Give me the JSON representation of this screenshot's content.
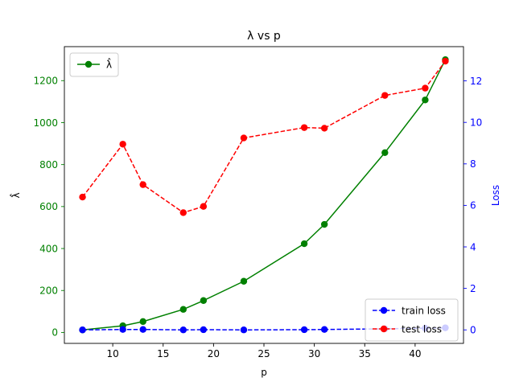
{
  "chart_data": {
    "type": "line",
    "title": "λ vs p",
    "xlabel": "p",
    "ylabel_left": "λ̂",
    "ylabel_right": "Loss",
    "x": [
      7,
      11,
      13,
      17,
      19,
      23,
      29,
      31,
      37,
      41,
      43
    ],
    "xlim": [
      5.2,
      44.8
    ],
    "xticks": [
      10,
      15,
      20,
      25,
      30,
      35,
      40
    ],
    "ylim_left": [
      -52,
      1362
    ],
    "yticks_left": [
      0,
      200,
      400,
      600,
      800,
      1000,
      1200
    ],
    "ylim_right": [
      -0.65,
      13.65
    ],
    "yticks_right": [
      0,
      2,
      4,
      6,
      8,
      10,
      12
    ],
    "series_left": [
      {
        "name": "λ̂",
        "color": "#008000",
        "linestyle": "solid",
        "values": [
          12,
          32,
          52,
          110,
          152,
          244,
          423,
          515,
          857,
          1108,
          1300
        ]
      }
    ],
    "series_right": [
      {
        "name": "train loss",
        "color": "#0000ff",
        "linestyle": "dashed",
        "values": [
          0.0,
          0.02,
          0.02,
          0.0,
          0.01,
          0.0,
          0.01,
          0.02,
          0.05,
          0.08,
          0.1
        ]
      },
      {
        "name": "test loss",
        "color": "#ff0000",
        "linestyle": "dashed",
        "values": [
          6.4,
          8.95,
          7.0,
          5.65,
          5.95,
          9.25,
          9.75,
          9.72,
          11.3,
          11.65,
          12.95
        ]
      }
    ],
    "legend_left": "top-left",
    "legend_right": "bottom-right",
    "grid": false,
    "left_axis_color": "#008000",
    "right_axis_color": "#0000ff"
  }
}
